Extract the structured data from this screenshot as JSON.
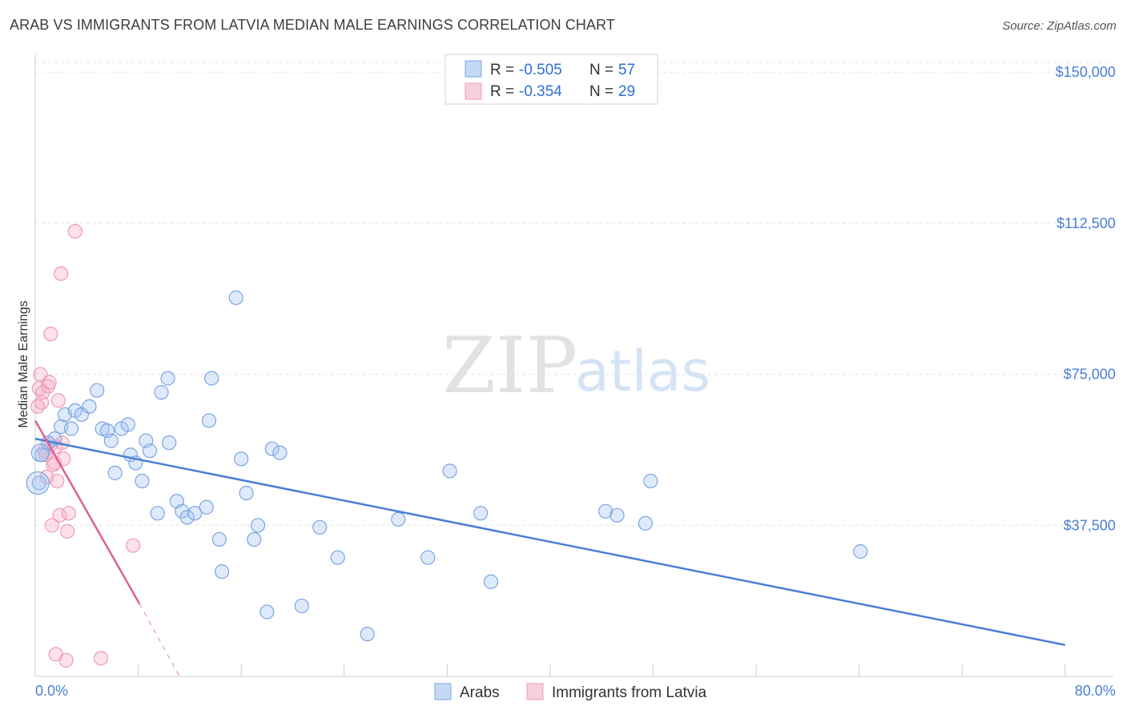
{
  "title": "ARAB VS IMMIGRANTS FROM LATVIA MEDIAN MALE EARNINGS CORRELATION CHART",
  "source": "Source: ZipAtlas.com",
  "watermark": {
    "part1": "ZIP",
    "part2": "atlas"
  },
  "colors": {
    "blue": "#4a7fd4",
    "blue_fill": "rgba(160,195,240,0.35)",
    "pink": "#e0608f",
    "pink_fill": "rgba(245,170,195,0.35)",
    "grid": "#dddddd"
  },
  "legend": {
    "rows": [
      {
        "r_label": "R =",
        "r_value": "-0.505",
        "n_label": "N =",
        "n_value": "57"
      },
      {
        "r_label": "R =",
        "r_value": "-0.354",
        "n_label": "N =",
        "n_value": "29"
      }
    ]
  },
  "bottom_legend": {
    "series1": "Arabs",
    "series2": "Immigrants from Latvia"
  },
  "chart_data": {
    "type": "scatter",
    "title": "ARAB VS IMMIGRANTS FROM LATVIA MEDIAN MALE EARNINGS CORRELATION CHART",
    "xlabel": "",
    "ylabel": "Median Male Earnings",
    "xlim": [
      0,
      80
    ],
    "ylim": [
      0,
      155000
    ],
    "x_tick_labels": [
      "0.0%",
      "80.0%"
    ],
    "y_ticks": [
      37500,
      75000,
      112500,
      150000
    ],
    "y_tick_labels": [
      "$37,500",
      "$75,000",
      "$112,500",
      "$150,000"
    ],
    "series": [
      {
        "name": "Arabs",
        "r": -0.505,
        "n": 57,
        "trend": {
          "x": [
            0,
            80
          ],
          "y": [
            59000,
            7800
          ]
        },
        "points": [
          [
            0.3,
            48000
          ],
          [
            0.5,
            55000
          ],
          [
            1.0,
            58000
          ],
          [
            1.5,
            59000
          ],
          [
            2.0,
            62000
          ],
          [
            2.3,
            65000
          ],
          [
            2.8,
            61500
          ],
          [
            3.1,
            66000
          ],
          [
            3.6,
            65000
          ],
          [
            4.2,
            67000
          ],
          [
            4.8,
            71000
          ],
          [
            5.2,
            61500
          ],
          [
            5.6,
            61000
          ],
          [
            5.9,
            58500
          ],
          [
            6.2,
            50500
          ],
          [
            6.7,
            61500
          ],
          [
            7.2,
            62500
          ],
          [
            7.4,
            55000
          ],
          [
            7.8,
            53000
          ],
          [
            8.3,
            48500
          ],
          [
            8.6,
            58500
          ],
          [
            8.9,
            56000
          ],
          [
            9.5,
            40500
          ],
          [
            9.8,
            70500
          ],
          [
            10.3,
            74000
          ],
          [
            10.4,
            58000
          ],
          [
            11.0,
            43500
          ],
          [
            11.4,
            41000
          ],
          [
            11.8,
            39500
          ],
          [
            12.4,
            40500
          ],
          [
            13.3,
            42000
          ],
          [
            13.5,
            63500
          ],
          [
            13.7,
            74000
          ],
          [
            14.3,
            34000
          ],
          [
            14.5,
            26000
          ],
          [
            15.6,
            94000
          ],
          [
            16.0,
            54000
          ],
          [
            16.4,
            45500
          ],
          [
            17.0,
            34000
          ],
          [
            17.3,
            37500
          ],
          [
            18.0,
            16000
          ],
          [
            18.4,
            56500
          ],
          [
            19.0,
            55500
          ],
          [
            20.7,
            17500
          ],
          [
            22.1,
            37000
          ],
          [
            23.5,
            29500
          ],
          [
            25.8,
            10500
          ],
          [
            28.2,
            39000
          ],
          [
            30.5,
            29500
          ],
          [
            32.2,
            51000
          ],
          [
            34.6,
            40500
          ],
          [
            35.4,
            23500
          ],
          [
            44.3,
            41000
          ],
          [
            45.2,
            40000
          ],
          [
            47.4,
            38000
          ],
          [
            47.8,
            48500
          ],
          [
            64.1,
            31000
          ]
        ]
      },
      {
        "name": "Immigrants from Latvia",
        "r": -0.354,
        "n": 29,
        "trend": {
          "x": [
            0,
            8.1
          ],
          "y": [
            63500,
            18000
          ]
        },
        "trend_dashed": {
          "x": [
            8.1,
            11.2
          ],
          "y": [
            18000,
            0
          ]
        },
        "points": [
          [
            0.2,
            67000
          ],
          [
            0.3,
            71500
          ],
          [
            0.4,
            75000
          ],
          [
            0.5,
            68000
          ],
          [
            0.6,
            70500
          ],
          [
            0.7,
            56000
          ],
          [
            0.8,
            55000
          ],
          [
            0.9,
            49500
          ],
          [
            1.0,
            72000
          ],
          [
            1.1,
            73000
          ],
          [
            1.2,
            57500
          ],
          [
            1.2,
            85000
          ],
          [
            1.3,
            37500
          ],
          [
            1.4,
            52500
          ],
          [
            1.5,
            53000
          ],
          [
            1.6,
            5500
          ],
          [
            1.6,
            57000
          ],
          [
            1.7,
            48500
          ],
          [
            1.8,
            68500
          ],
          [
            1.9,
            40000
          ],
          [
            2.1,
            58000
          ],
          [
            2.2,
            54000
          ],
          [
            2.0,
            100000
          ],
          [
            2.4,
            4000
          ],
          [
            2.5,
            36000
          ],
          [
            2.6,
            40500
          ],
          [
            3.1,
            110500
          ],
          [
            5.1,
            4500
          ],
          [
            7.6,
            32500
          ]
        ]
      }
    ]
  }
}
